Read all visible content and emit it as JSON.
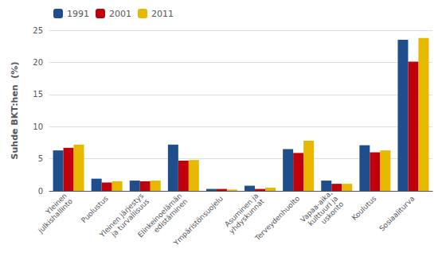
{
  "chart_data": {
    "type": "bar",
    "categories": [
      "Yleinen\njulkishallinto",
      "Puolustus",
      "Yleinen järjestys\nja turvallisuus",
      "Elinkeinoelämän\nedistäminen",
      "Ympäristönsuojelu",
      "Asuminen ja\nyhdyskunnat",
      "Terveydenhuolto",
      "Vapaa-aika,\nkulttuuri ja\nuskonto",
      "Koulutus",
      "Sosiaaliturva"
    ],
    "series": [
      {
        "name": "1991",
        "color": "#1f4e8c",
        "values": [
          6.3,
          1.9,
          1.6,
          7.2,
          0.3,
          0.8,
          6.5,
          1.6,
          7.1,
          23.5
        ]
      },
      {
        "name": "2001",
        "color": "#c0000c",
        "values": [
          6.7,
          1.3,
          1.5,
          4.7,
          0.3,
          0.3,
          5.9,
          1.1,
          6.0,
          20.1
        ]
      },
      {
        "name": "2011",
        "color": "#e8b800",
        "values": [
          7.2,
          1.5,
          1.6,
          4.8,
          0.2,
          0.5,
          7.8,
          1.1,
          6.3,
          23.8
        ]
      }
    ],
    "ylabel": "Suhde BKT:hen  (%)",
    "ylim": [
      0,
      25
    ],
    "yticks": [
      0,
      5,
      10,
      15,
      20,
      25
    ],
    "grid": true,
    "legend": "upper left"
  }
}
